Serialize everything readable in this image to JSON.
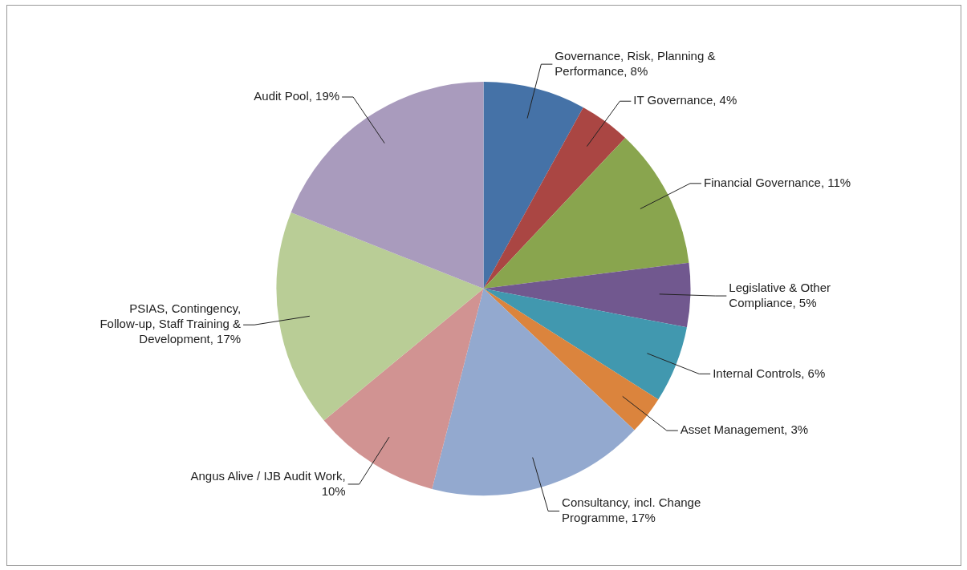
{
  "chart_data": {
    "type": "pie",
    "categories": [
      "Governance, Risk, Planning & Performance, 8%",
      "IT Governance, 4%",
      "Financial Governance, 11%",
      "Legislative & Other Compliance, 5%",
      "Internal Controls, 6%",
      "Asset Management, 3%",
      "Consultancy, incl. Change Programme, 17%",
      "Angus Alive / IJB Audit Work, 10%",
      "PSIAS, Contingency, Follow-up, Staff Training & Development, 17%",
      "Audit Pool, 19%"
    ],
    "values": [
      8,
      4,
      11,
      5,
      6,
      3,
      17,
      10,
      17,
      19
    ],
    "colors": [
      "#4572a7",
      "#aa4643",
      "#89a54e",
      "#71588f",
      "#4198af",
      "#db843d",
      "#93a9cf",
      "#d19392",
      "#b9cd96",
      "#a99bbd"
    ],
    "legend": false
  }
}
